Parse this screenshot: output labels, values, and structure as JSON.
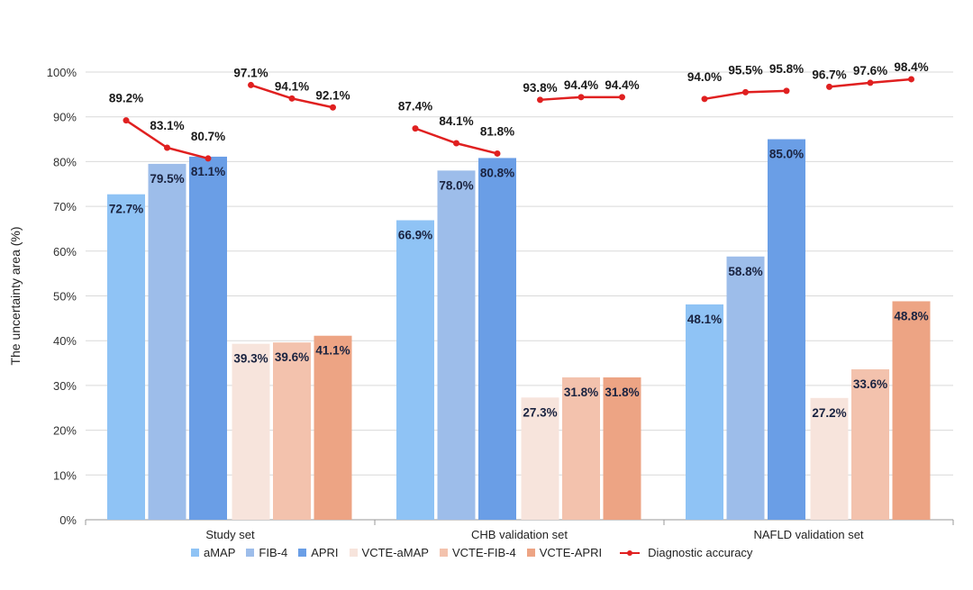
{
  "chart_data": {
    "type": "bar",
    "title": "",
    "ylabel": "The uncertainty area (%)",
    "xlabel": "",
    "ylim": [
      0,
      100
    ],
    "yticks": [
      "0%",
      "10%",
      "20%",
      "30%",
      "40%",
      "50%",
      "60%",
      "70%",
      "80%",
      "90%",
      "100%"
    ],
    "grid": true,
    "legend_placement": "bottom",
    "categories": [
      "Study set",
      "CHB validation set",
      "NAFLD validation set"
    ],
    "series": [
      {
        "name": "aMAP",
        "color": "#8fc3f5",
        "values": [
          72.7,
          66.9,
          48.1
        ],
        "labels": [
          "72.7%",
          "66.9%",
          "48.1%"
        ]
      },
      {
        "name": "FIB-4",
        "color": "#9dbdea",
        "values": [
          79.5,
          78.0,
          58.8
        ],
        "labels": [
          "79.5%",
          "78.0%",
          "58.8%"
        ]
      },
      {
        "name": "APRI",
        "color": "#6a9ee6",
        "values": [
          81.1,
          80.8,
          85.0
        ],
        "labels": [
          "81.1%",
          "80.8%",
          "85.0%"
        ]
      },
      {
        "name": "VCTE-aMAP",
        "color": "#f7e4dc",
        "values": [
          39.3,
          27.3,
          27.2
        ],
        "labels": [
          "39.3%",
          "27.3%",
          "27.2%"
        ]
      },
      {
        "name": "VCTE-FIB-4",
        "color": "#f3c2ad",
        "values": [
          39.6,
          31.8,
          33.6
        ],
        "labels": [
          "39.6%",
          "31.8%",
          "33.6%"
        ]
      },
      {
        "name": "VCTE-APRI",
        "color": "#eda484",
        "values": [
          41.1,
          31.8,
          48.8
        ],
        "labels": [
          "41.1%",
          "31.8%",
          "48.8%"
        ]
      }
    ],
    "line_series": {
      "name": "Diagnostic accuracy",
      "color": "#e02020",
      "values": [
        [
          89.2,
          83.1,
          80.7,
          97.1,
          94.1,
          92.1
        ],
        [
          87.4,
          84.1,
          81.8,
          93.8,
          94.4,
          94.4
        ],
        [
          94.0,
          95.5,
          95.8,
          96.7,
          97.6,
          98.4
        ]
      ],
      "labels": [
        [
          "89.2%",
          "83.1%",
          "80.7%",
          "97.1%",
          "94.1%",
          "92.1%"
        ],
        [
          "87.4%",
          "84.1%",
          "81.8%",
          "93.8%",
          "94.4%",
          "94.4%"
        ],
        [
          "94.0%",
          "95.5%",
          "95.8%",
          "96.7%",
          "97.6%",
          "98.4%"
        ]
      ]
    }
  }
}
